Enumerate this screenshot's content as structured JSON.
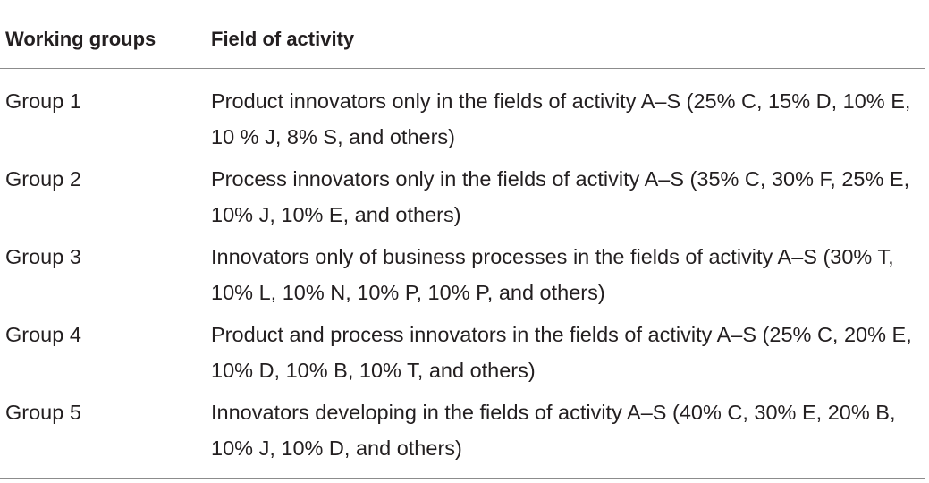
{
  "table": {
    "headers": {
      "col1": "Working groups",
      "col2": "Field of activity"
    },
    "rows": [
      {
        "group": "Group 1",
        "activity": "Product innovators only in the fields of activity A–S (25% C, 15% D, 10% E, 10 % J, 8% S, and others)"
      },
      {
        "group": "Group 2",
        "activity": "Process innovators only in the fields of activity A–S (35% C, 30% F, 25% E, 10% J, 10% E, and others)"
      },
      {
        "group": "Group 3",
        "activity": "Innovators only of business processes in the fields of activity A–S (30% T, 10% L, 10% N, 10% P, 10% P, and others)"
      },
      {
        "group": "Group 4",
        "activity": "Product and process innovators in the fields of activity A–S (25% C, 20% E, 10% D, 10% B, 10% T, and others)"
      },
      {
        "group": "Group 5",
        "activity": "Innovators developing in the fields of activity A–S (40% C, 30% E, 20% B, 10% J, 10% D, and others)"
      }
    ]
  }
}
